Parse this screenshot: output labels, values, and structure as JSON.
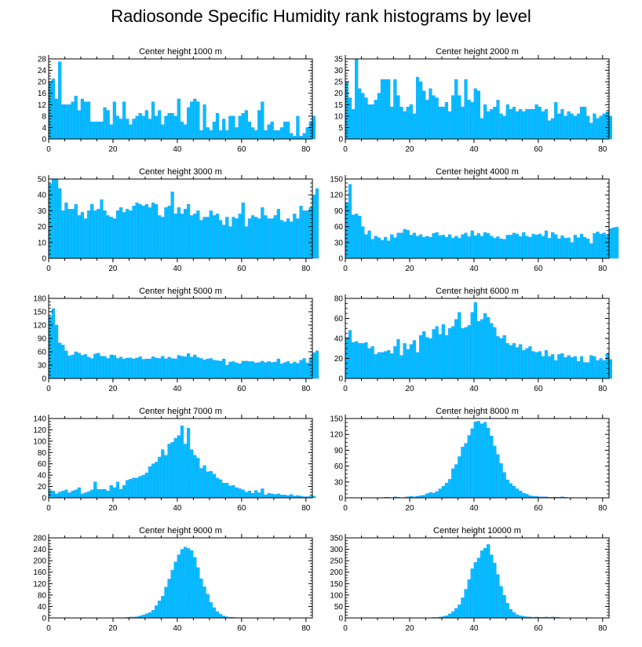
{
  "title": "Radiosonde Specific Humidity rank histograms by level",
  "bar_color": "#00bfff",
  "bar_edge_color": "#1e90ff",
  "chart_data": [
    {
      "type": "bar",
      "title": "Center height 1000 m",
      "x_start": 0,
      "bin_width": 1,
      "xlim": [
        0,
        82
      ],
      "ylim": [
        0,
        28
      ],
      "xticks": [
        0,
        20,
        40,
        60,
        80
      ],
      "yticks": [
        0,
        4,
        8,
        12,
        16,
        20,
        24,
        28
      ],
      "values": [
        20,
        21,
        14,
        27,
        12,
        12,
        12,
        13,
        15,
        10,
        14,
        13,
        13,
        6,
        6,
        6,
        6,
        11,
        10,
        5,
        13,
        8,
        7,
        13,
        7,
        5,
        7,
        8,
        9,
        8,
        10,
        7,
        13,
        8,
        10,
        5,
        8,
        9,
        9,
        8,
        14,
        6,
        5,
        11,
        13,
        14,
        13,
        3,
        12,
        4,
        3,
        6,
        9,
        3,
        7,
        3,
        8,
        8,
        4,
        8,
        9,
        10,
        6,
        4,
        3,
        10,
        13,
        3,
        5,
        6,
        3,
        3,
        4,
        6,
        6,
        2,
        1,
        8,
        1,
        2,
        4,
        6,
        8
      ]
    },
    {
      "type": "bar",
      "title": "Center height 2000 m",
      "x_start": 0,
      "bin_width": 1,
      "xlim": [
        0,
        82
      ],
      "ylim": [
        0,
        35
      ],
      "xticks": [
        0,
        20,
        40,
        60,
        80
      ],
      "yticks": [
        0,
        5,
        10,
        15,
        20,
        25,
        30,
        35
      ],
      "values": [
        25,
        18,
        13,
        35,
        22,
        20,
        18,
        15,
        15,
        17,
        20,
        26,
        26,
        26,
        14,
        26,
        19,
        14,
        12,
        14,
        15,
        11,
        27,
        25,
        21,
        17,
        22,
        19,
        18,
        14,
        14,
        16,
        12,
        19,
        26,
        19,
        14,
        26,
        17,
        16,
        22,
        21,
        9,
        15,
        12,
        13,
        14,
        17,
        11,
        10,
        15,
        13,
        14,
        12,
        13,
        12,
        13,
        13,
        13,
        15,
        14,
        12,
        13,
        8,
        9,
        16,
        11,
        13,
        10,
        12,
        11,
        10,
        11,
        14,
        14,
        10,
        7,
        11,
        9,
        10,
        11,
        12,
        10
      ]
    },
    {
      "type": "bar",
      "title": "Center height 3000 m",
      "x_start": 0,
      "bin_width": 1,
      "xlim": [
        0,
        82
      ],
      "ylim": [
        0,
        50
      ],
      "xticks": [
        0,
        20,
        40,
        60,
        80
      ],
      "yticks": [
        0,
        10,
        20,
        30,
        40,
        50
      ],
      "values": [
        47,
        50,
        50,
        44,
        30,
        35,
        31,
        31,
        34,
        27,
        29,
        25,
        30,
        34,
        30,
        31,
        37,
        30,
        27,
        26,
        25,
        30,
        32,
        29,
        31,
        30,
        33,
        35,
        34,
        33,
        34,
        32,
        35,
        34,
        27,
        26,
        32,
        33,
        42,
        28,
        32,
        28,
        31,
        34,
        27,
        28,
        30,
        24,
        26,
        26,
        30,
        27,
        28,
        24,
        21,
        26,
        20,
        26,
        25,
        28,
        35,
        20,
        25,
        27,
        26,
        25,
        32,
        27,
        25,
        25,
        27,
        31,
        24,
        23,
        25,
        23,
        28,
        25,
        33,
        30,
        30,
        32,
        40,
        44
      ]
    },
    {
      "type": "bar",
      "title": "Center height 4000 m",
      "x_start": 0,
      "bin_width": 1,
      "xlim": [
        0,
        82
      ],
      "ylim": [
        0,
        150
      ],
      "xticks": [
        0,
        20,
        40,
        60,
        80
      ],
      "yticks": [
        0,
        30,
        60,
        90,
        120,
        150
      ],
      "values": [
        105,
        140,
        82,
        84,
        80,
        60,
        45,
        52,
        36,
        42,
        39,
        34,
        40,
        33,
        45,
        39,
        48,
        48,
        55,
        53,
        44,
        48,
        42,
        45,
        40,
        42,
        40,
        47,
        49,
        43,
        44,
        40,
        45,
        38,
        42,
        38,
        45,
        48,
        41,
        52,
        43,
        47,
        42,
        49,
        47,
        42,
        38,
        41,
        37,
        36,
        44,
        44,
        48,
        46,
        41,
        49,
        42,
        40,
        46,
        44,
        46,
        42,
        52,
        38,
        49,
        45,
        37,
        43,
        38,
        39,
        30,
        44,
        39,
        46,
        40,
        37,
        28,
        47,
        50,
        46,
        48,
        44,
        56,
        58,
        59
      ]
    },
    {
      "type": "bar",
      "title": "Center height 5000 m",
      "x_start": 0,
      "bin_width": 1,
      "xlim": [
        0,
        82
      ],
      "ylim": [
        0,
        180
      ],
      "xticks": [
        0,
        20,
        40,
        60,
        80
      ],
      "yticks": [
        0,
        30,
        60,
        90,
        120,
        150,
        180
      ],
      "values": [
        140,
        157,
        120,
        80,
        75,
        62,
        51,
        53,
        60,
        57,
        52,
        54,
        48,
        45,
        55,
        57,
        50,
        50,
        45,
        53,
        52,
        45,
        48,
        44,
        46,
        46,
        44,
        46,
        49,
        43,
        44,
        44,
        49,
        46,
        45,
        50,
        44,
        48,
        45,
        44,
        52,
        50,
        49,
        56,
        48,
        53,
        47,
        45,
        42,
        44,
        45,
        41,
        40,
        39,
        44,
        30,
        37,
        38,
        35,
        33,
        39,
        39,
        38,
        38,
        35,
        36,
        39,
        36,
        38,
        36,
        37,
        44,
        33,
        36,
        38,
        33,
        37,
        34,
        41,
        45,
        35,
        47,
        58,
        62
      ]
    },
    {
      "type": "bar",
      "title": "Center height 6000 m",
      "x_start": 0,
      "bin_width": 1,
      "xlim": [
        0,
        82
      ],
      "ylim": [
        0,
        80
      ],
      "xticks": [
        0,
        20,
        40,
        60,
        80
      ],
      "yticks": [
        0,
        20,
        40,
        60,
        80
      ],
      "values": [
        41,
        48,
        36,
        37,
        35,
        35,
        36,
        30,
        32,
        24,
        26,
        26,
        27,
        28,
        25,
        32,
        39,
        23,
        35,
        29,
        34,
        38,
        26,
        43,
        47,
        41,
        40,
        49,
        52,
        44,
        54,
        43,
        50,
        52,
        59,
        66,
        50,
        51,
        53,
        66,
        76,
        57,
        59,
        65,
        61,
        55,
        51,
        42,
        40,
        43,
        35,
        33,
        35,
        31,
        34,
        28,
        30,
        32,
        27,
        26,
        27,
        22,
        28,
        22,
        24,
        18,
        24,
        25,
        21,
        23,
        21,
        22,
        17,
        22,
        16,
        16,
        23,
        22,
        18,
        20,
        18,
        25,
        19
      ]
    },
    {
      "type": "bar",
      "title": "Center height 7000 m",
      "x_start": 0,
      "bin_width": 1,
      "xlim": [
        0,
        82
      ],
      "ylim": [
        0,
        140
      ],
      "xticks": [
        0,
        20,
        40,
        60,
        80
      ],
      "yticks": [
        0,
        20,
        40,
        60,
        80,
        100,
        120,
        140
      ],
      "values": [
        13,
        12,
        7,
        10,
        12,
        14,
        9,
        12,
        14,
        18,
        7,
        9,
        11,
        14,
        28,
        15,
        15,
        15,
        12,
        22,
        18,
        28,
        15,
        22,
        31,
        33,
        35,
        35,
        38,
        40,
        44,
        55,
        60,
        63,
        72,
        85,
        75,
        95,
        98,
        105,
        110,
        127,
        95,
        123,
        85,
        75,
        70,
        52,
        57,
        46,
        47,
        42,
        35,
        32,
        26,
        26,
        21,
        22,
        18,
        16,
        14,
        10,
        12,
        8,
        13,
        9,
        16,
        5,
        8,
        7,
        6,
        7,
        5,
        5,
        4,
        6,
        3,
        4,
        3,
        2,
        2,
        3,
        3
      ]
    },
    {
      "type": "bar",
      "title": "Center height 8000 m",
      "x_start": 0,
      "bin_width": 1,
      "xlim": [
        0,
        82
      ],
      "ylim": [
        0,
        150
      ],
      "xticks": [
        0,
        20,
        40,
        60,
        80
      ],
      "yticks": [
        0,
        30,
        60,
        90,
        120,
        150
      ],
      "values": [
        0,
        0,
        0,
        0,
        0,
        0,
        0,
        0,
        0,
        0,
        0,
        0,
        1,
        1,
        0,
        2,
        1,
        0,
        1,
        2,
        3,
        2,
        3,
        4,
        5,
        8,
        10,
        9,
        12,
        17,
        22,
        28,
        35,
        55,
        63,
        78,
        96,
        103,
        118,
        131,
        144,
        145,
        140,
        143,
        132,
        117,
        98,
        82,
        65,
        48,
        34,
        27,
        22,
        17,
        13,
        9,
        7,
        4,
        3,
        3,
        2,
        2,
        2,
        1,
        1,
        1,
        1,
        2,
        1,
        0,
        0,
        0,
        0,
        0,
        0,
        0,
        0,
        0,
        0,
        0,
        0,
        0,
        0
      ]
    },
    {
      "type": "bar",
      "title": "Center height 9000 m",
      "x_start": 0,
      "bin_width": 1,
      "xlim": [
        0,
        82
      ],
      "ylim": [
        0,
        280
      ],
      "xticks": [
        0,
        20,
        40,
        60,
        80
      ],
      "yticks": [
        0,
        40,
        80,
        120,
        160,
        200,
        240,
        280
      ],
      "values": [
        0,
        0,
        0,
        0,
        0,
        0,
        0,
        0,
        0,
        0,
        0,
        0,
        0,
        0,
        0,
        0,
        0,
        0,
        0,
        0,
        0,
        1,
        1,
        1,
        2,
        3,
        3,
        4,
        7,
        10,
        15,
        19,
        27,
        43,
        60,
        76,
        108,
        136,
        167,
        196,
        221,
        240,
        248,
        243,
        236,
        212,
        176,
        137,
        109,
        83,
        54,
        36,
        22,
        13,
        7,
        4,
        2,
        2,
        1,
        1,
        1,
        0,
        0,
        0,
        0,
        0,
        0,
        0,
        0,
        0,
        0,
        0,
        0,
        0,
        0,
        0,
        0,
        0,
        0,
        0,
        0,
        0,
        0
      ]
    },
    {
      "type": "bar",
      "title": "Center height 10000 m",
      "x_start": 0,
      "bin_width": 1,
      "xlim": [
        0,
        82
      ],
      "ylim": [
        0,
        350
      ],
      "xticks": [
        0,
        20,
        40,
        60,
        80
      ],
      "yticks": [
        0,
        50,
        100,
        150,
        200,
        250,
        300,
        350
      ],
      "values": [
        0,
        0,
        0,
        0,
        0,
        0,
        0,
        0,
        0,
        0,
        0,
        0,
        0,
        0,
        0,
        0,
        0,
        0,
        0,
        0,
        0,
        0,
        0,
        0,
        0,
        1,
        1,
        2,
        2,
        4,
        6,
        10,
        18,
        28,
        42,
        58,
        88,
        125,
        168,
        215,
        243,
        262,
        294,
        305,
        321,
        276,
        240,
        190,
        138,
        99,
        64,
        37,
        24,
        14,
        10,
        7,
        5,
        4,
        3,
        4,
        3,
        3,
        4,
        3,
        4,
        3,
        2,
        1,
        1,
        1,
        0,
        0,
        0,
        0,
        0,
        0,
        0,
        0,
        0,
        0,
        0,
        0,
        0
      ]
    }
  ]
}
